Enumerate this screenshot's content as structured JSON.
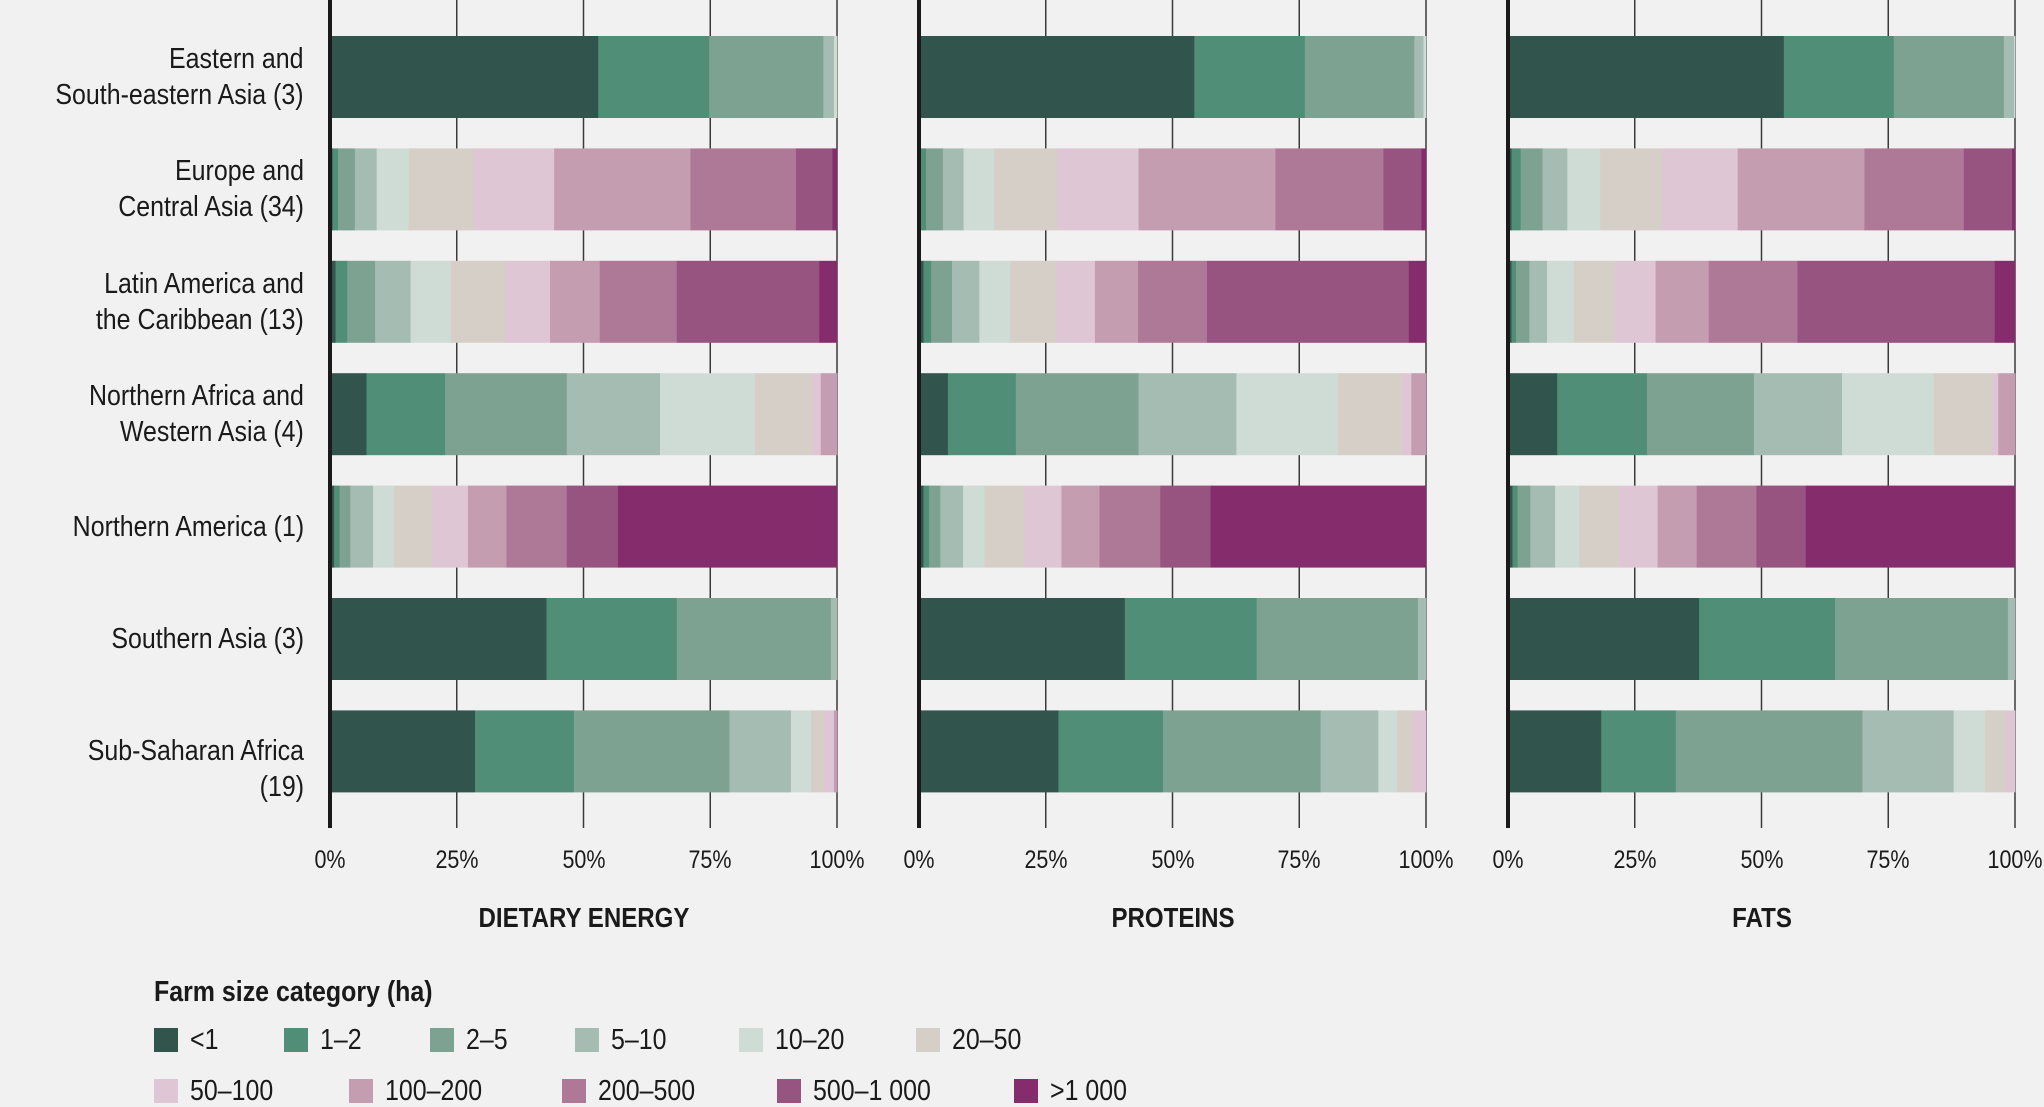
{
  "chart_data": {
    "type": "bar",
    "orientation": "horizontal",
    "stacked": "100%",
    "xlim": [
      0,
      100
    ],
    "xticks": [
      "0%",
      "25%",
      "50%",
      "75%",
      "100%"
    ],
    "grid": true,
    "categories": [
      "Eastern and\nSouth-eastern Asia (3)",
      "Europe and\nCentral Asia (34)",
      "Latin America and\nthe Caribbean (13)",
      "Northern Africa and\nWestern Asia (4)",
      "Northern America (1)",
      "Southern Asia (3)",
      "Sub-Saharan Africa (19)"
    ],
    "legend": {
      "title": "Farm size category (ha)",
      "placement": "bottom-left",
      "items": [
        {
          "label": "<1",
          "color": "#31544d"
        },
        {
          "label": "1–2",
          "color": "#518e77"
        },
        {
          "label": "2–5",
          "color": "#7da292"
        },
        {
          "label": "5–10",
          "color": "#a4bcb1"
        },
        {
          "label": "10–20",
          "color": "#cfdcd6"
        },
        {
          "label": "20–50",
          "color": "#d5cfc8"
        },
        {
          "label": "50–100",
          "color": "#dfc6d5"
        },
        {
          "label": "100–200",
          "color": "#c49db0"
        },
        {
          "label": "200–500",
          "color": "#ad7996"
        },
        {
          "label": "500–1 000",
          "color": "#985480"
        },
        {
          "label": ">1 000",
          "color": "#852d6c"
        }
      ]
    },
    "panels": [
      {
        "title": "DIETARY ENERGY",
        "series": [
          [
            52.9,
            0.5,
            1.1,
            7.2,
            0.8,
            42.7,
            28.6
          ],
          [
            21.9,
            1.1,
            2.3,
            15.5,
            1.1,
            25.7,
            19.5
          ],
          [
            22.5,
            3.3,
            5.5,
            24.0,
            2.1,
            30.4,
            30.7
          ],
          [
            2.1,
            4.3,
            7.0,
            18.4,
            4.5,
            1.2,
            12.1
          ],
          [
            0.6,
            6.3,
            7.9,
            18.7,
            4.1,
            0,
            4.0
          ],
          [
            0,
            12.7,
            10.7,
            11.3,
            7.6,
            0,
            2.5
          ],
          [
            0,
            16.0,
            8.9,
            1.7,
            7.0,
            0,
            2.0
          ],
          [
            0,
            26.9,
            9.8,
            3.2,
            7.6,
            0,
            0.6
          ],
          [
            0,
            20.8,
            15.2,
            0,
            11.9,
            0,
            0
          ],
          [
            0,
            7.2,
            28.1,
            0,
            10.1,
            0,
            0
          ],
          [
            0,
            0.9,
            3.5,
            0,
            43.2,
            0,
            0
          ]
        ]
      },
      {
        "title": "PROTEINS",
        "series": [
          [
            54.3,
            0.3,
            0.9,
            5.7,
            0.9,
            40.6,
            27.5
          ],
          [
            21.8,
            1.1,
            1.5,
            13.4,
            1.1,
            26.0,
            20.6
          ],
          [
            21.6,
            3.3,
            4.1,
            24.2,
            2.2,
            31.8,
            31.1
          ],
          [
            1.8,
            4.1,
            5.4,
            19.3,
            4.5,
            1.6,
            11.4
          ],
          [
            0.5,
            6.0,
            6.1,
            20.0,
            4.2,
            0,
            3.7
          ],
          [
            0,
            12.5,
            9.0,
            12.6,
            7.9,
            0,
            3.0
          ],
          [
            0,
            16.0,
            7.7,
            1.9,
            7.3,
            0,
            2.7
          ],
          [
            0,
            27.0,
            8.5,
            2.9,
            7.5,
            0,
            0
          ],
          [
            0,
            21.3,
            13.6,
            0,
            12.0,
            0,
            0
          ],
          [
            0,
            7.5,
            39.8,
            0,
            9.9,
            0,
            0
          ],
          [
            0,
            0.9,
            3.4,
            0,
            42.5,
            0,
            0
          ]
        ]
      },
      {
        "title": "FATS",
        "series": [
          [
            54.4,
            0.7,
            0.7,
            9.7,
            0.9,
            37.7,
            18.4
          ],
          [
            21.7,
            1.8,
            0.9,
            17.7,
            1.0,
            26.8,
            14.7
          ],
          [
            21.7,
            4.3,
            2.6,
            21.1,
            2.5,
            34.1,
            36.8
          ],
          [
            2.0,
            4.9,
            3.5,
            17.4,
            4.9,
            1.4,
            18.0
          ],
          [
            0.2,
            6.5,
            5.3,
            18.1,
            4.8,
            0,
            6.2
          ],
          [
            0,
            12.1,
            8.1,
            11.5,
            7.7,
            0,
            4.1
          ],
          [
            0,
            15.0,
            8.0,
            1.2,
            7.7,
            0,
            1.8
          ],
          [
            0,
            25.0,
            10.5,
            3.3,
            7.7,
            0,
            0
          ],
          [
            0,
            19.6,
            17.5,
            0,
            11.8,
            0,
            0
          ],
          [
            0,
            9.5,
            38.9,
            0,
            9.7,
            0,
            0
          ],
          [
            0,
            0.6,
            4.0,
            0,
            41.3,
            0,
            0
          ]
        ]
      }
    ]
  }
}
